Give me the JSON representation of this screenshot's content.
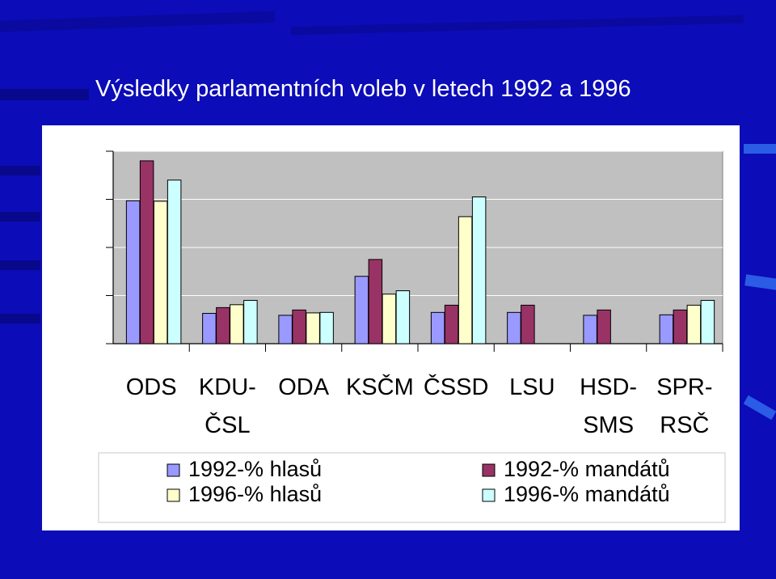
{
  "slide": {
    "title": "Výsledky parlamentních voleb v letech 1992 a 1996"
  },
  "colors": {
    "background": "#0c0cb8",
    "panel": "#ffffff",
    "plot_area": "#c0c0c0"
  },
  "chart_data": {
    "type": "bar",
    "title": "",
    "xlabel": "",
    "ylabel": "",
    "ylim": [
      0,
      40
    ],
    "yticks": [
      0,
      10,
      20,
      30,
      40
    ],
    "grid": true,
    "legend_position": "bottom",
    "categories": [
      "ODS",
      "KDU-ČSL",
      "ODA",
      "KSČM",
      "ČSSD",
      "LSU",
      "HSD-SMS",
      "SPR-RSČ"
    ],
    "category_lines": [
      [
        "ODS"
      ],
      [
        "KDU-",
        "ČSL"
      ],
      [
        "ODA"
      ],
      [
        "KSČM"
      ],
      [
        "ČSSD"
      ],
      [
        "LSU"
      ],
      [
        "HSD-",
        "SMS"
      ],
      [
        "SPR-",
        "RSČ"
      ]
    ],
    "series": [
      {
        "name": "1992-% hlasů",
        "color": "#9999ff",
        "values": [
          29.7,
          6.3,
          5.9,
          14.0,
          6.5,
          6.5,
          5.9,
          6.0
        ]
      },
      {
        "name": "1992-% mandátů",
        "color": "#993366",
        "values": [
          38.0,
          7.5,
          7.0,
          17.5,
          8.0,
          8.0,
          7.0,
          7.0
        ]
      },
      {
        "name": "1996-% hlasů",
        "color": "#ffffcc",
        "values": [
          29.6,
          8.1,
          6.4,
          10.3,
          26.4,
          null,
          null,
          8.0
        ]
      },
      {
        "name": "1996-% mandátů",
        "color": "#ccffff",
        "values": [
          34.0,
          9.0,
          6.5,
          11.0,
          30.5,
          null,
          null,
          9.0
        ]
      }
    ]
  }
}
